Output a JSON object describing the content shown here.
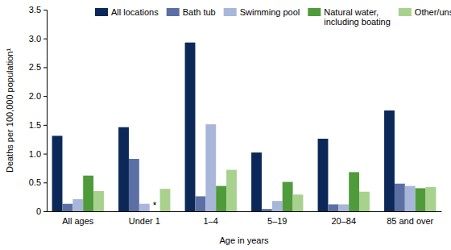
{
  "chart_data": {
    "type": "bar",
    "x_label": "Age in years",
    "y_label": "Deaths per 100,000 population¹",
    "categories": [
      "All ages",
      "Under 1",
      "1–4",
      "5–19",
      "20–84",
      "85 and over"
    ],
    "series": [
      {
        "name": "All locations",
        "color": "#0b2858",
        "values": [
          1.31,
          1.46,
          2.93,
          1.02,
          1.26,
          1.75
        ]
      },
      {
        "name": "Bath tub",
        "color": "#5b6fa4",
        "values": [
          0.13,
          0.91,
          0.26,
          0.04,
          0.12,
          0.48
        ]
      },
      {
        "name": "Swimming pool",
        "color": "#a8b7d9",
        "values": [
          0.21,
          0.13,
          1.51,
          0.18,
          0.12,
          0.44
        ]
      },
      {
        "name": "Natural water, including boating",
        "color": "#4f9b3b",
        "values": [
          0.62,
          null,
          0.44,
          0.51,
          0.68,
          0.4
        ]
      },
      {
        "name": "Other/unspecified",
        "color": "#a9d18e",
        "values": [
          0.35,
          0.39,
          0.72,
          0.29,
          0.34,
          0.42
        ]
      }
    ],
    "annotations": [
      "*"
    ],
    "ylim": [
      0,
      3.5
    ],
    "yticks": [
      0,
      0.5,
      {
        "value": 1,
        "label": "1.0"
      },
      1.5,
      {
        "value": 2,
        "label": "2.0"
      },
      2.5,
      {
        "value": 3,
        "label": "3.0"
      },
      3.5
    ],
    "grid": false,
    "legend": "top"
  }
}
